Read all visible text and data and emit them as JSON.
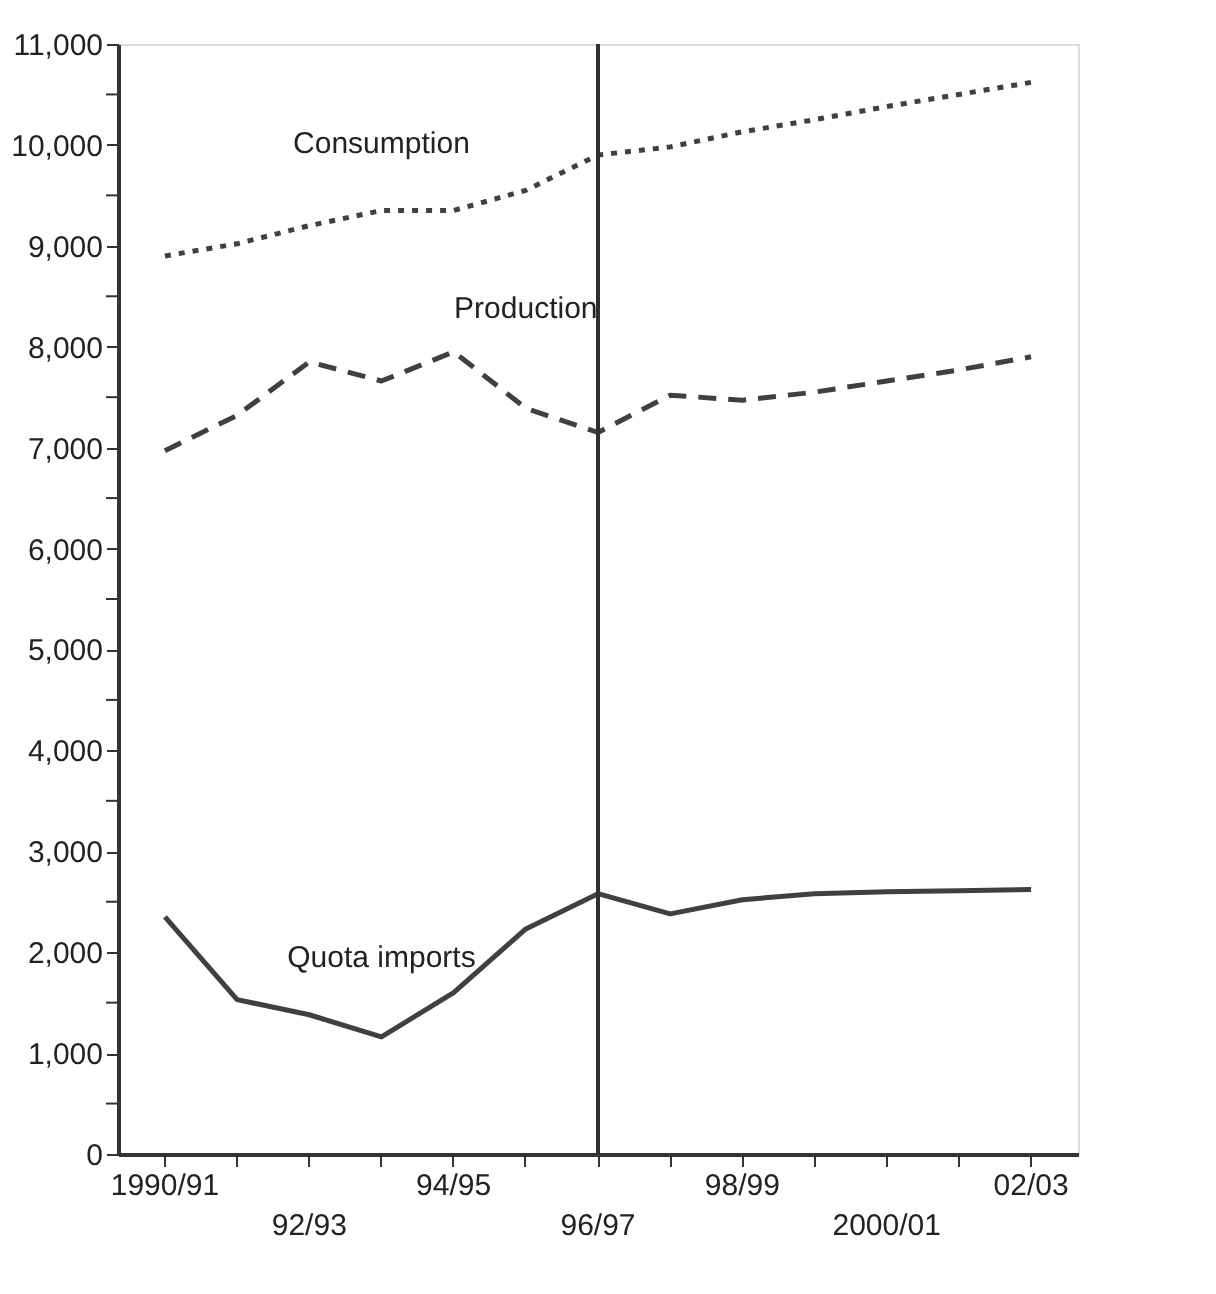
{
  "chart_data": {
    "type": "line",
    "categories": [
      "1990/91",
      null,
      "92/93",
      null,
      "94/95",
      null,
      "96/97",
      null,
      "98/99",
      null,
      "2000/01",
      null,
      "02/03"
    ],
    "series": [
      {
        "name": "Consumption",
        "color": "#404040",
        "line_style": "dotted",
        "values": [
          8900,
          9020,
          9200,
          9350,
          9350,
          9550,
          9900,
          9980,
          10130,
          10250,
          10380,
          10500,
          10620
        ]
      },
      {
        "name": "Production",
        "color": "#404040",
        "line_style": "dashed",
        "values": [
          6970,
          7320,
          7850,
          7660,
          7950,
          7390,
          7150,
          7520,
          7470,
          7550,
          7660,
          7770,
          7900
        ]
      },
      {
        "name": "Quota imports",
        "color": "#404040",
        "line_style": "solid",
        "values": [
          2350,
          1530,
          1380,
          1160,
          1600,
          2230,
          2580,
          2380,
          2520,
          2580,
          2600,
          2610,
          2620
        ]
      }
    ],
    "ylim": [
      0,
      11000
    ],
    "yticks": [
      0,
      {
        "value": 500,
        "label": null
      },
      {
        "value": 1000,
        "label": "1,000"
      },
      {
        "value": 1500,
        "label": null
      },
      {
        "value": 2000,
        "label": "2,000"
      },
      {
        "value": 2500,
        "label": null
      },
      {
        "value": 3000,
        "label": "3,000"
      },
      {
        "value": 3500,
        "label": null
      },
      {
        "value": 4000,
        "label": "4,000"
      },
      {
        "value": 4500,
        "label": null
      },
      {
        "value": 5000,
        "label": "5,000"
      },
      {
        "value": 5500,
        "label": null
      },
      {
        "value": 6000,
        "label": "6,000"
      },
      {
        "value": 6500,
        "label": null
      },
      {
        "value": 7000,
        "label": "7,000"
      },
      {
        "value": 7500,
        "label": null
      },
      {
        "value": 8000,
        "label": "8,000"
      },
      {
        "value": 8500,
        "label": null
      },
      {
        "value": 9000,
        "label": "9,000"
      },
      {
        "value": 9500,
        "label": null
      },
      {
        "value": 10000,
        "label": "10,000"
      },
      {
        "value": 10500,
        "label": null
      },
      {
        "value": 11000,
        "label": "11,000"
      }
    ],
    "ref_lines": [
      {
        "axis": "x",
        "value": "96/97",
        "color": "#303030",
        "line_style": "solid"
      }
    ],
    "grid": false,
    "marker": "none"
  }
}
